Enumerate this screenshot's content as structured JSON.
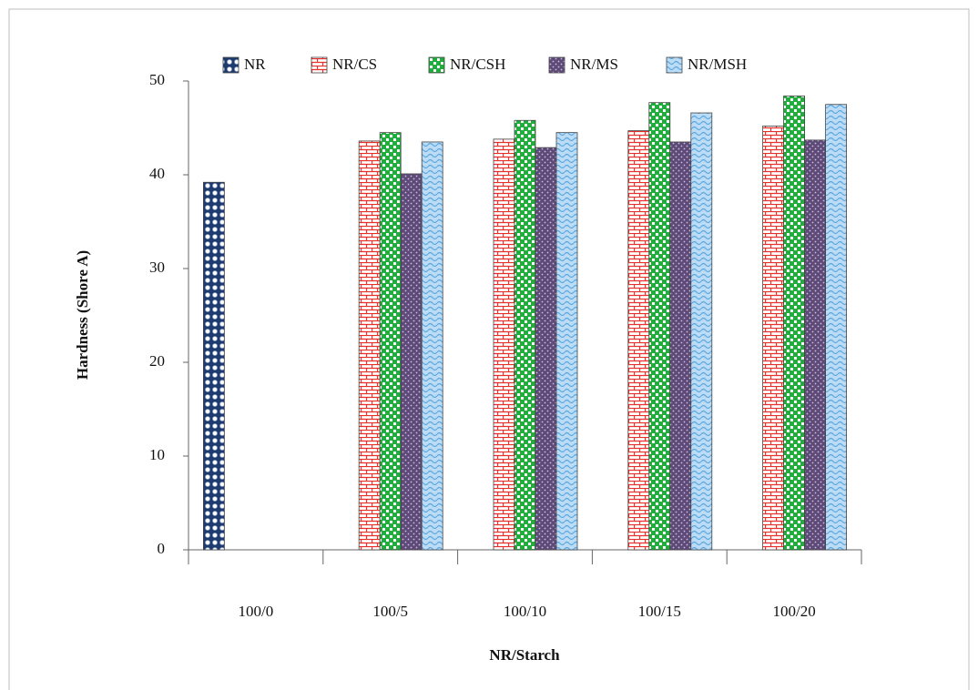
{
  "chart_data": {
    "type": "bar",
    "x_label": "NR/Starch",
    "y_label": "Hardness (Shore A)",
    "categories": [
      "100/0",
      "100/5",
      "100/10",
      "100/15",
      "100/20"
    ],
    "series": [
      {
        "name": "NR",
        "color": "#1f3b6e",
        "values": [
          39.2,
          null,
          null,
          null,
          null
        ]
      },
      {
        "name": "NR/CS",
        "color": "#e8302a",
        "values": [
          null,
          43.6,
          43.8,
          44.7,
          45.2
        ]
      },
      {
        "name": "NR/CSH",
        "color": "#1fae3c",
        "values": [
          null,
          44.5,
          45.8,
          47.7,
          48.4
        ]
      },
      {
        "name": "NR/MS",
        "color": "#5e4a78",
        "values": [
          null,
          40.1,
          42.9,
          43.5,
          43.7
        ]
      },
      {
        "name": "NR/MSH",
        "color": "#5aa7e0",
        "values": [
          null,
          43.5,
          44.5,
          46.6,
          47.5
        ]
      }
    ],
    "ylim": [
      0,
      50
    ],
    "yticks": [
      0,
      10,
      20,
      30,
      40,
      50
    ],
    "grid": false,
    "legend": "top"
  }
}
